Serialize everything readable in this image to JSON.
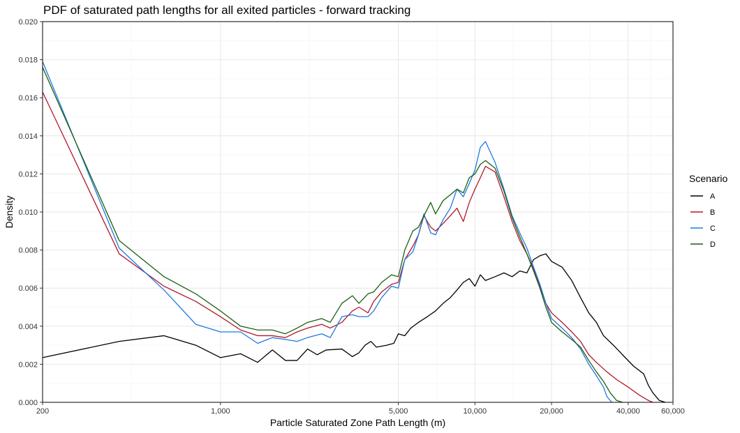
{
  "chart_data": {
    "type": "line",
    "title": "PDF of saturated path lengths for all exited particles - forward tracking",
    "xlabel": "Particle Saturated Zone Path Length (m)",
    "ylabel": "Density",
    "x_scale": "log",
    "xlim": [
      200,
      60000
    ],
    "ylim": [
      0,
      0.02
    ],
    "x_ticks": [
      200,
      1000,
      5000,
      10000,
      20000,
      40000,
      60000
    ],
    "x_tick_labels": [
      "200",
      "1,000",
      "5,000",
      "10,000",
      "20,000",
      "40,000",
      "60,000"
    ],
    "y_ticks": [
      0,
      0.002,
      0.004,
      0.006,
      0.008,
      0.01,
      0.012,
      0.014,
      0.016,
      0.018,
      0.02
    ],
    "y_tick_labels": [
      "0.000",
      "0.002",
      "0.004",
      "0.006",
      "0.008",
      "0.010",
      "0.012",
      "0.014",
      "0.016",
      "0.018",
      "0.020"
    ],
    "grid": true,
    "legend": {
      "title": "Scenario",
      "placement": "right"
    },
    "series": [
      {
        "name": "A",
        "color": "#000000",
        "points": [
          [
            200,
            0.00235
          ],
          [
            400,
            0.0032
          ],
          [
            600,
            0.0035
          ],
          [
            800,
            0.003
          ],
          [
            1000,
            0.00235
          ],
          [
            1200,
            0.00255
          ],
          [
            1400,
            0.0021
          ],
          [
            1600,
            0.00275
          ],
          [
            1800,
            0.0022
          ],
          [
            2000,
            0.0022
          ],
          [
            2200,
            0.0028
          ],
          [
            2400,
            0.0025
          ],
          [
            2600,
            0.00275
          ],
          [
            3000,
            0.0028
          ],
          [
            3300,
            0.0024
          ],
          [
            3500,
            0.0026
          ],
          [
            3700,
            0.003
          ],
          [
            3900,
            0.0032
          ],
          [
            4100,
            0.0029
          ],
          [
            4500,
            0.003
          ],
          [
            4800,
            0.0031
          ],
          [
            5000,
            0.0036
          ],
          [
            5300,
            0.0035
          ],
          [
            5600,
            0.0039
          ],
          [
            6000,
            0.0042
          ],
          [
            6500,
            0.0045
          ],
          [
            7000,
            0.0048
          ],
          [
            7500,
            0.0052
          ],
          [
            8000,
            0.0055
          ],
          [
            8500,
            0.0059
          ],
          [
            9000,
            0.0063
          ],
          [
            9500,
            0.0065
          ],
          [
            10000,
            0.0061
          ],
          [
            10500,
            0.0067
          ],
          [
            11000,
            0.0064
          ],
          [
            12000,
            0.0066
          ],
          [
            13000,
            0.0068
          ],
          [
            14000,
            0.0066
          ],
          [
            15000,
            0.0069
          ],
          [
            16000,
            0.0068
          ],
          [
            17000,
            0.0075
          ],
          [
            18000,
            0.0077
          ],
          [
            19000,
            0.0078
          ],
          [
            20000,
            0.0074
          ],
          [
            22000,
            0.0071
          ],
          [
            24000,
            0.0064
          ],
          [
            26000,
            0.0055
          ],
          [
            28000,
            0.0047
          ],
          [
            30000,
            0.0042
          ],
          [
            32000,
            0.0035
          ],
          [
            35000,
            0.003
          ],
          [
            38000,
            0.0025
          ],
          [
            42000,
            0.0019
          ],
          [
            46000,
            0.0015
          ],
          [
            48000,
            0.0009
          ],
          [
            50000,
            0.0005
          ],
          [
            53000,
            0.0001
          ],
          [
            56000,
            0.0
          ]
        ]
      },
      {
        "name": "B",
        "color": "#b2182b",
        "points": [
          [
            200,
            0.0163
          ],
          [
            400,
            0.0078
          ],
          [
            600,
            0.0061
          ],
          [
            800,
            0.0053
          ],
          [
            1000,
            0.0045
          ],
          [
            1200,
            0.0038
          ],
          [
            1400,
            0.0035
          ],
          [
            1600,
            0.0035
          ],
          [
            1800,
            0.0034
          ],
          [
            2000,
            0.0037
          ],
          [
            2200,
            0.0039
          ],
          [
            2500,
            0.0041
          ],
          [
            2700,
            0.0039
          ],
          [
            3000,
            0.0042
          ],
          [
            3300,
            0.0048
          ],
          [
            3500,
            0.005
          ],
          [
            3800,
            0.0047
          ],
          [
            4000,
            0.0053
          ],
          [
            4300,
            0.0058
          ],
          [
            4700,
            0.0062
          ],
          [
            5000,
            0.0063
          ],
          [
            5300,
            0.0075
          ],
          [
            5700,
            0.0082
          ],
          [
            6000,
            0.0088
          ],
          [
            6300,
            0.0098
          ],
          [
            6700,
            0.0092
          ],
          [
            7000,
            0.009
          ],
          [
            7500,
            0.0094
          ],
          [
            8000,
            0.0098
          ],
          [
            8500,
            0.0102
          ],
          [
            9000,
            0.0095
          ],
          [
            9500,
            0.0105
          ],
          [
            10000,
            0.0112
          ],
          [
            10500,
            0.0118
          ],
          [
            11000,
            0.0124
          ],
          [
            12000,
            0.0121
          ],
          [
            13000,
            0.0108
          ],
          [
            14000,
            0.0095
          ],
          [
            15000,
            0.0085
          ],
          [
            16000,
            0.0078
          ],
          [
            17000,
            0.007
          ],
          [
            18000,
            0.0061
          ],
          [
            19000,
            0.0052
          ],
          [
            20000,
            0.0047
          ],
          [
            22000,
            0.0042
          ],
          [
            24000,
            0.0037
          ],
          [
            26000,
            0.0032
          ],
          [
            28000,
            0.0025
          ],
          [
            30000,
            0.0021
          ],
          [
            33000,
            0.0016
          ],
          [
            36000,
            0.0012
          ],
          [
            40000,
            0.0008
          ],
          [
            44000,
            0.0004
          ],
          [
            48000,
            0.0001
          ],
          [
            50000,
            0.0
          ]
        ]
      },
      {
        "name": "C",
        "color": "#1f78e0",
        "points": [
          [
            200,
            0.0179
          ],
          [
            400,
            0.0081
          ],
          [
            600,
            0.0059
          ],
          [
            800,
            0.0041
          ],
          [
            1000,
            0.0037
          ],
          [
            1200,
            0.0037
          ],
          [
            1400,
            0.0031
          ],
          [
            1600,
            0.0034
          ],
          [
            1800,
            0.0033
          ],
          [
            2000,
            0.0032
          ],
          [
            2200,
            0.0034
          ],
          [
            2500,
            0.0036
          ],
          [
            2700,
            0.0034
          ],
          [
            3000,
            0.0045
          ],
          [
            3300,
            0.0046
          ],
          [
            3500,
            0.0045
          ],
          [
            3800,
            0.0045
          ],
          [
            4000,
            0.0048
          ],
          [
            4300,
            0.0055
          ],
          [
            4700,
            0.0061
          ],
          [
            5000,
            0.006
          ],
          [
            5300,
            0.0075
          ],
          [
            5700,
            0.0079
          ],
          [
            6000,
            0.0088
          ],
          [
            6300,
            0.0099
          ],
          [
            6700,
            0.0089
          ],
          [
            7000,
            0.0088
          ],
          [
            7500,
            0.0096
          ],
          [
            8000,
            0.0102
          ],
          [
            8500,
            0.0112
          ],
          [
            9000,
            0.0108
          ],
          [
            9500,
            0.0115
          ],
          [
            10000,
            0.0122
          ],
          [
            10500,
            0.0134
          ],
          [
            11000,
            0.0137
          ],
          [
            12000,
            0.0126
          ],
          [
            13000,
            0.0112
          ],
          [
            14000,
            0.0098
          ],
          [
            15000,
            0.0089
          ],
          [
            16000,
            0.0081
          ],
          [
            17000,
            0.0071
          ],
          [
            18000,
            0.0062
          ],
          [
            19000,
            0.0052
          ],
          [
            20000,
            0.0044
          ],
          [
            22000,
            0.0039
          ],
          [
            24000,
            0.0034
          ],
          [
            26000,
            0.0028
          ],
          [
            28000,
            0.002
          ],
          [
            30000,
            0.0014
          ],
          [
            32000,
            0.0008
          ],
          [
            33000,
            0.0003
          ],
          [
            34500,
            0.0
          ]
        ]
      },
      {
        "name": "D",
        "color": "#1a5f10",
        "points": [
          [
            200,
            0.0176
          ],
          [
            400,
            0.0085
          ],
          [
            600,
            0.0066
          ],
          [
            800,
            0.0057
          ],
          [
            1000,
            0.0048
          ],
          [
            1200,
            0.004
          ],
          [
            1400,
            0.0038
          ],
          [
            1600,
            0.0038
          ],
          [
            1800,
            0.0036
          ],
          [
            2000,
            0.0039
          ],
          [
            2200,
            0.0042
          ],
          [
            2500,
            0.0044
          ],
          [
            2700,
            0.0042
          ],
          [
            3000,
            0.0052
          ],
          [
            3300,
            0.0056
          ],
          [
            3500,
            0.0052
          ],
          [
            3800,
            0.0057
          ],
          [
            4000,
            0.0058
          ],
          [
            4300,
            0.0063
          ],
          [
            4700,
            0.0067
          ],
          [
            5000,
            0.0066
          ],
          [
            5300,
            0.008
          ],
          [
            5700,
            0.009
          ],
          [
            6000,
            0.0092
          ],
          [
            6300,
            0.0098
          ],
          [
            6700,
            0.0105
          ],
          [
            7000,
            0.0099
          ],
          [
            7500,
            0.0106
          ],
          [
            8000,
            0.0109
          ],
          [
            8500,
            0.0112
          ],
          [
            9000,
            0.011
          ],
          [
            9500,
            0.0118
          ],
          [
            10000,
            0.012
          ],
          [
            10500,
            0.0125
          ],
          [
            11000,
            0.0127
          ],
          [
            12000,
            0.0123
          ],
          [
            13000,
            0.0111
          ],
          [
            14000,
            0.0097
          ],
          [
            15000,
            0.0087
          ],
          [
            16000,
            0.0078
          ],
          [
            17000,
            0.0069
          ],
          [
            18000,
            0.006
          ],
          [
            19000,
            0.005
          ],
          [
            20000,
            0.0042
          ],
          [
            22000,
            0.0037
          ],
          [
            24000,
            0.0033
          ],
          [
            26000,
            0.0029
          ],
          [
            28000,
            0.0022
          ],
          [
            30000,
            0.0016
          ],
          [
            32000,
            0.0011
          ],
          [
            34000,
            0.0005
          ],
          [
            36000,
            0.0001
          ],
          [
            38000,
            0.0
          ]
        ]
      }
    ]
  }
}
